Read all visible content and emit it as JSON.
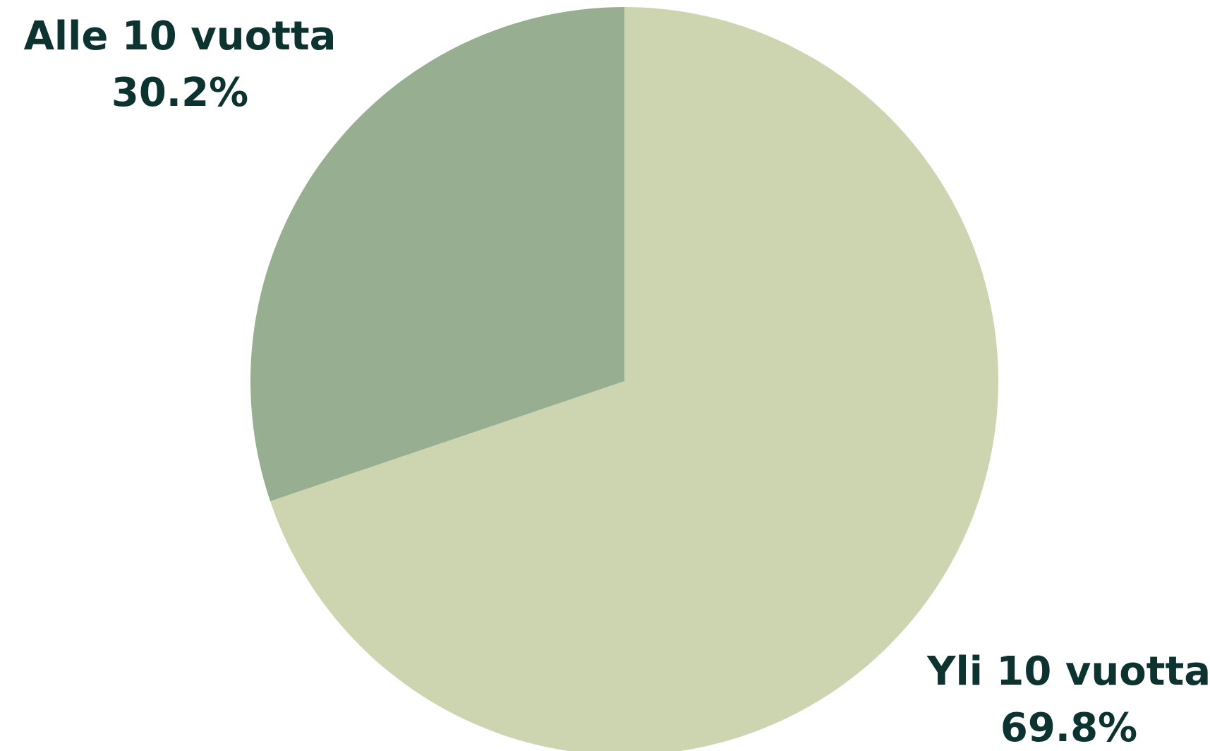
{
  "chart_data": {
    "type": "pie",
    "slices": [
      {
        "label": "Yli 10 vuotta",
        "value": 69.8,
        "display": "69.8%",
        "color": "#cdd5b0"
      },
      {
        "label": "Alle 10 vuotta",
        "value": 30.2,
        "display": "30.2%",
        "color": "#97af90"
      }
    ],
    "start_angle_deg": 0,
    "direction": "clockwise",
    "label_color": "#0d3330"
  }
}
